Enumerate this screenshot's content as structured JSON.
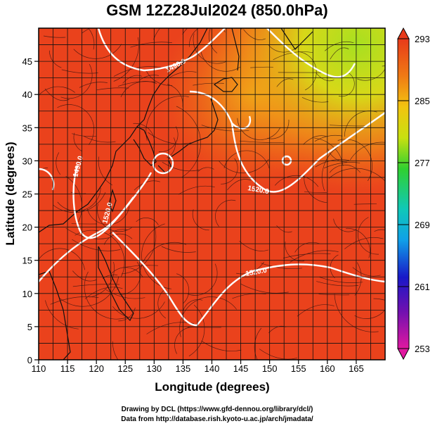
{
  "title": "GSM 12Z28Jul2024 (850.0hPa)",
  "axes": {
    "xlabel": "Longitude (degrees)",
    "ylabel": "Latitude  (degrees)",
    "xticks": [
      "110",
      "115",
      "120",
      "125",
      "130",
      "135",
      "140",
      "145",
      "150",
      "155",
      "160",
      "165"
    ],
    "yticks": [
      "0",
      "5",
      "10",
      "15",
      "20",
      "25",
      "30",
      "35",
      "40",
      "45"
    ],
    "xlim": [
      110,
      170
    ],
    "ylim": [
      0,
      50
    ]
  },
  "colorbar": {
    "ticks": [
      "293",
      "285",
      "277",
      "269",
      "261",
      "253"
    ],
    "range": [
      253,
      293
    ],
    "colors": [
      "#e0139a",
      "#1010c8",
      "#10a0e8",
      "#10d090",
      "#40d020",
      "#f0e000",
      "#f08010",
      "#e83010"
    ]
  },
  "contours": {
    "labels": [
      "1490.0",
      "1520.0",
      "1490.0",
      "1520.0",
      "1520.0"
    ]
  },
  "credits": {
    "line1": "Drawing by DCL (https://www.gfd-dennou.org/library/dcl/)",
    "line2": "Data from http://database.rish.kyoto-u.ac.jp/arch/jmadata/"
  },
  "chart_data": {
    "type": "heatmap",
    "title": "GSM 12Z28Jul2024 (850.0hPa)",
    "xlabel": "Longitude (degrees)",
    "ylabel": "Latitude  (degrees)",
    "xlim": [
      110,
      170
    ],
    "ylim": [
      0,
      50
    ],
    "colorbar_range": [
      253,
      293
    ],
    "colorbar_ticks": [
      293,
      285,
      277,
      269,
      261,
      253
    ],
    "temperature_K_estimates": [
      {
        "lon": 115,
        "lat": 45,
        "value": 292
      },
      {
        "lon": 130,
        "lat": 30,
        "value": 293
      },
      {
        "lon": 150,
        "lat": 42,
        "value": 282
      },
      {
        "lon": 165,
        "lat": 46,
        "value": 279
      },
      {
        "lon": 140,
        "lat": 10,
        "value": 291
      },
      {
        "lon": 160,
        "lat": 20,
        "value": 292
      }
    ],
    "contour_levels": [
      1490.0,
      1520.0
    ]
  }
}
